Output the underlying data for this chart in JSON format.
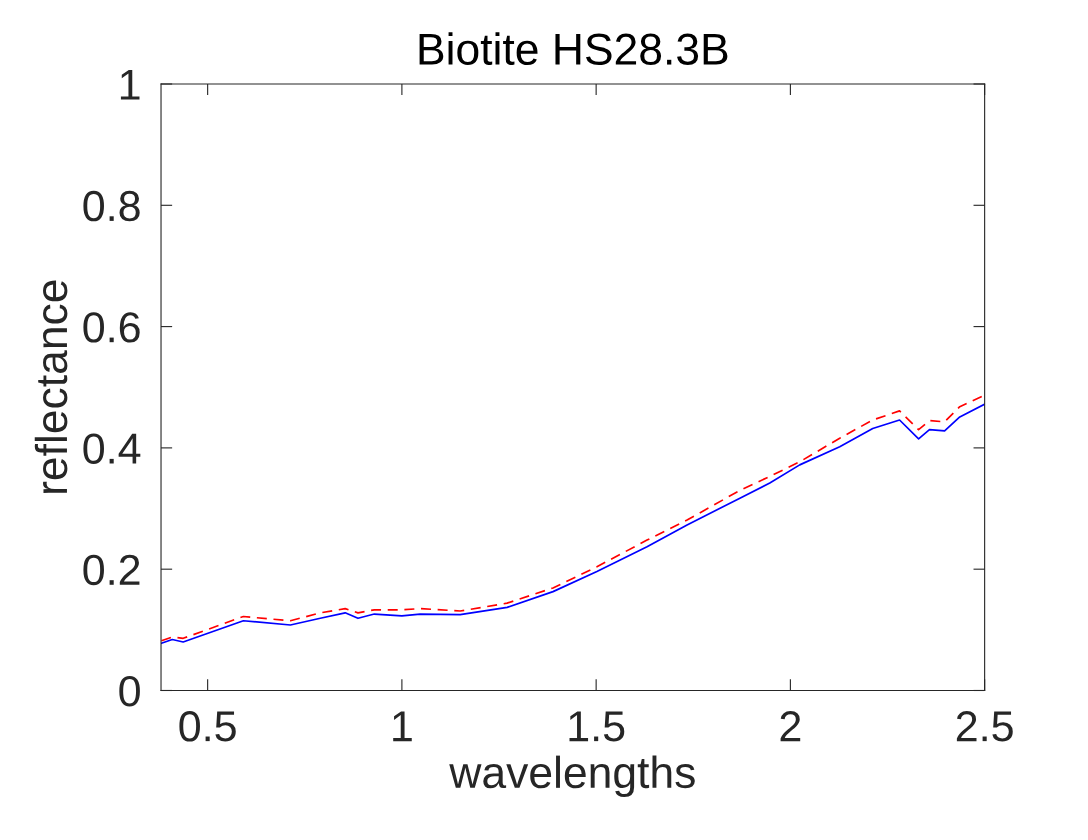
{
  "chart_data": {
    "type": "line",
    "title": "Biotite HS28.3B",
    "xlabel": "wavelengths",
    "ylabel": "reflectance",
    "xlim": [
      0.38,
      2.5
    ],
    "xticks": [
      0.5,
      1,
      1.5,
      2,
      2.5
    ],
    "ylim": [
      0,
      1
    ],
    "yticks": [
      0,
      0.2,
      0.4,
      0.6,
      0.8,
      1
    ],
    "grid": false,
    "series": [
      {
        "color": "#ff0000",
        "line_style": "dashed",
        "x": [
          0.381,
          0.409,
          0.437,
          0.592,
          0.713,
          0.79,
          0.854,
          0.887,
          0.929,
          1.0,
          1.047,
          1.15,
          1.271,
          1.389,
          1.502,
          1.631,
          1.734,
          1.87,
          1.947,
          2.024,
          2.127,
          2.212,
          2.281,
          2.33,
          2.358,
          2.397,
          2.436,
          2.5
        ],
        "values": [
          0.082,
          0.088,
          0.086,
          0.122,
          0.115,
          0.128,
          0.135,
          0.128,
          0.133,
          0.133,
          0.135,
          0.131,
          0.144,
          0.169,
          0.204,
          0.248,
          0.281,
          0.33,
          0.353,
          0.377,
          0.416,
          0.446,
          0.461,
          0.43,
          0.445,
          0.443,
          0.468,
          0.487
        ]
      },
      {
        "color": "#0000ff",
        "line_style": "solid",
        "x": [
          0.381,
          0.409,
          0.437,
          0.592,
          0.713,
          0.79,
          0.854,
          0.887,
          0.929,
          1.0,
          1.047,
          1.15,
          1.271,
          1.389,
          1.502,
          1.631,
          1.734,
          1.87,
          1.947,
          2.024,
          2.127,
          2.212,
          2.281,
          2.33,
          2.358,
          2.397,
          2.436,
          2.5
        ],
        "values": [
          0.078,
          0.084,
          0.08,
          0.115,
          0.108,
          0.119,
          0.128,
          0.119,
          0.126,
          0.123,
          0.126,
          0.125,
          0.137,
          0.163,
          0.196,
          0.237,
          0.273,
          0.317,
          0.342,
          0.372,
          0.402,
          0.432,
          0.446,
          0.415,
          0.43,
          0.428,
          0.451,
          0.472
        ]
      }
    ]
  }
}
